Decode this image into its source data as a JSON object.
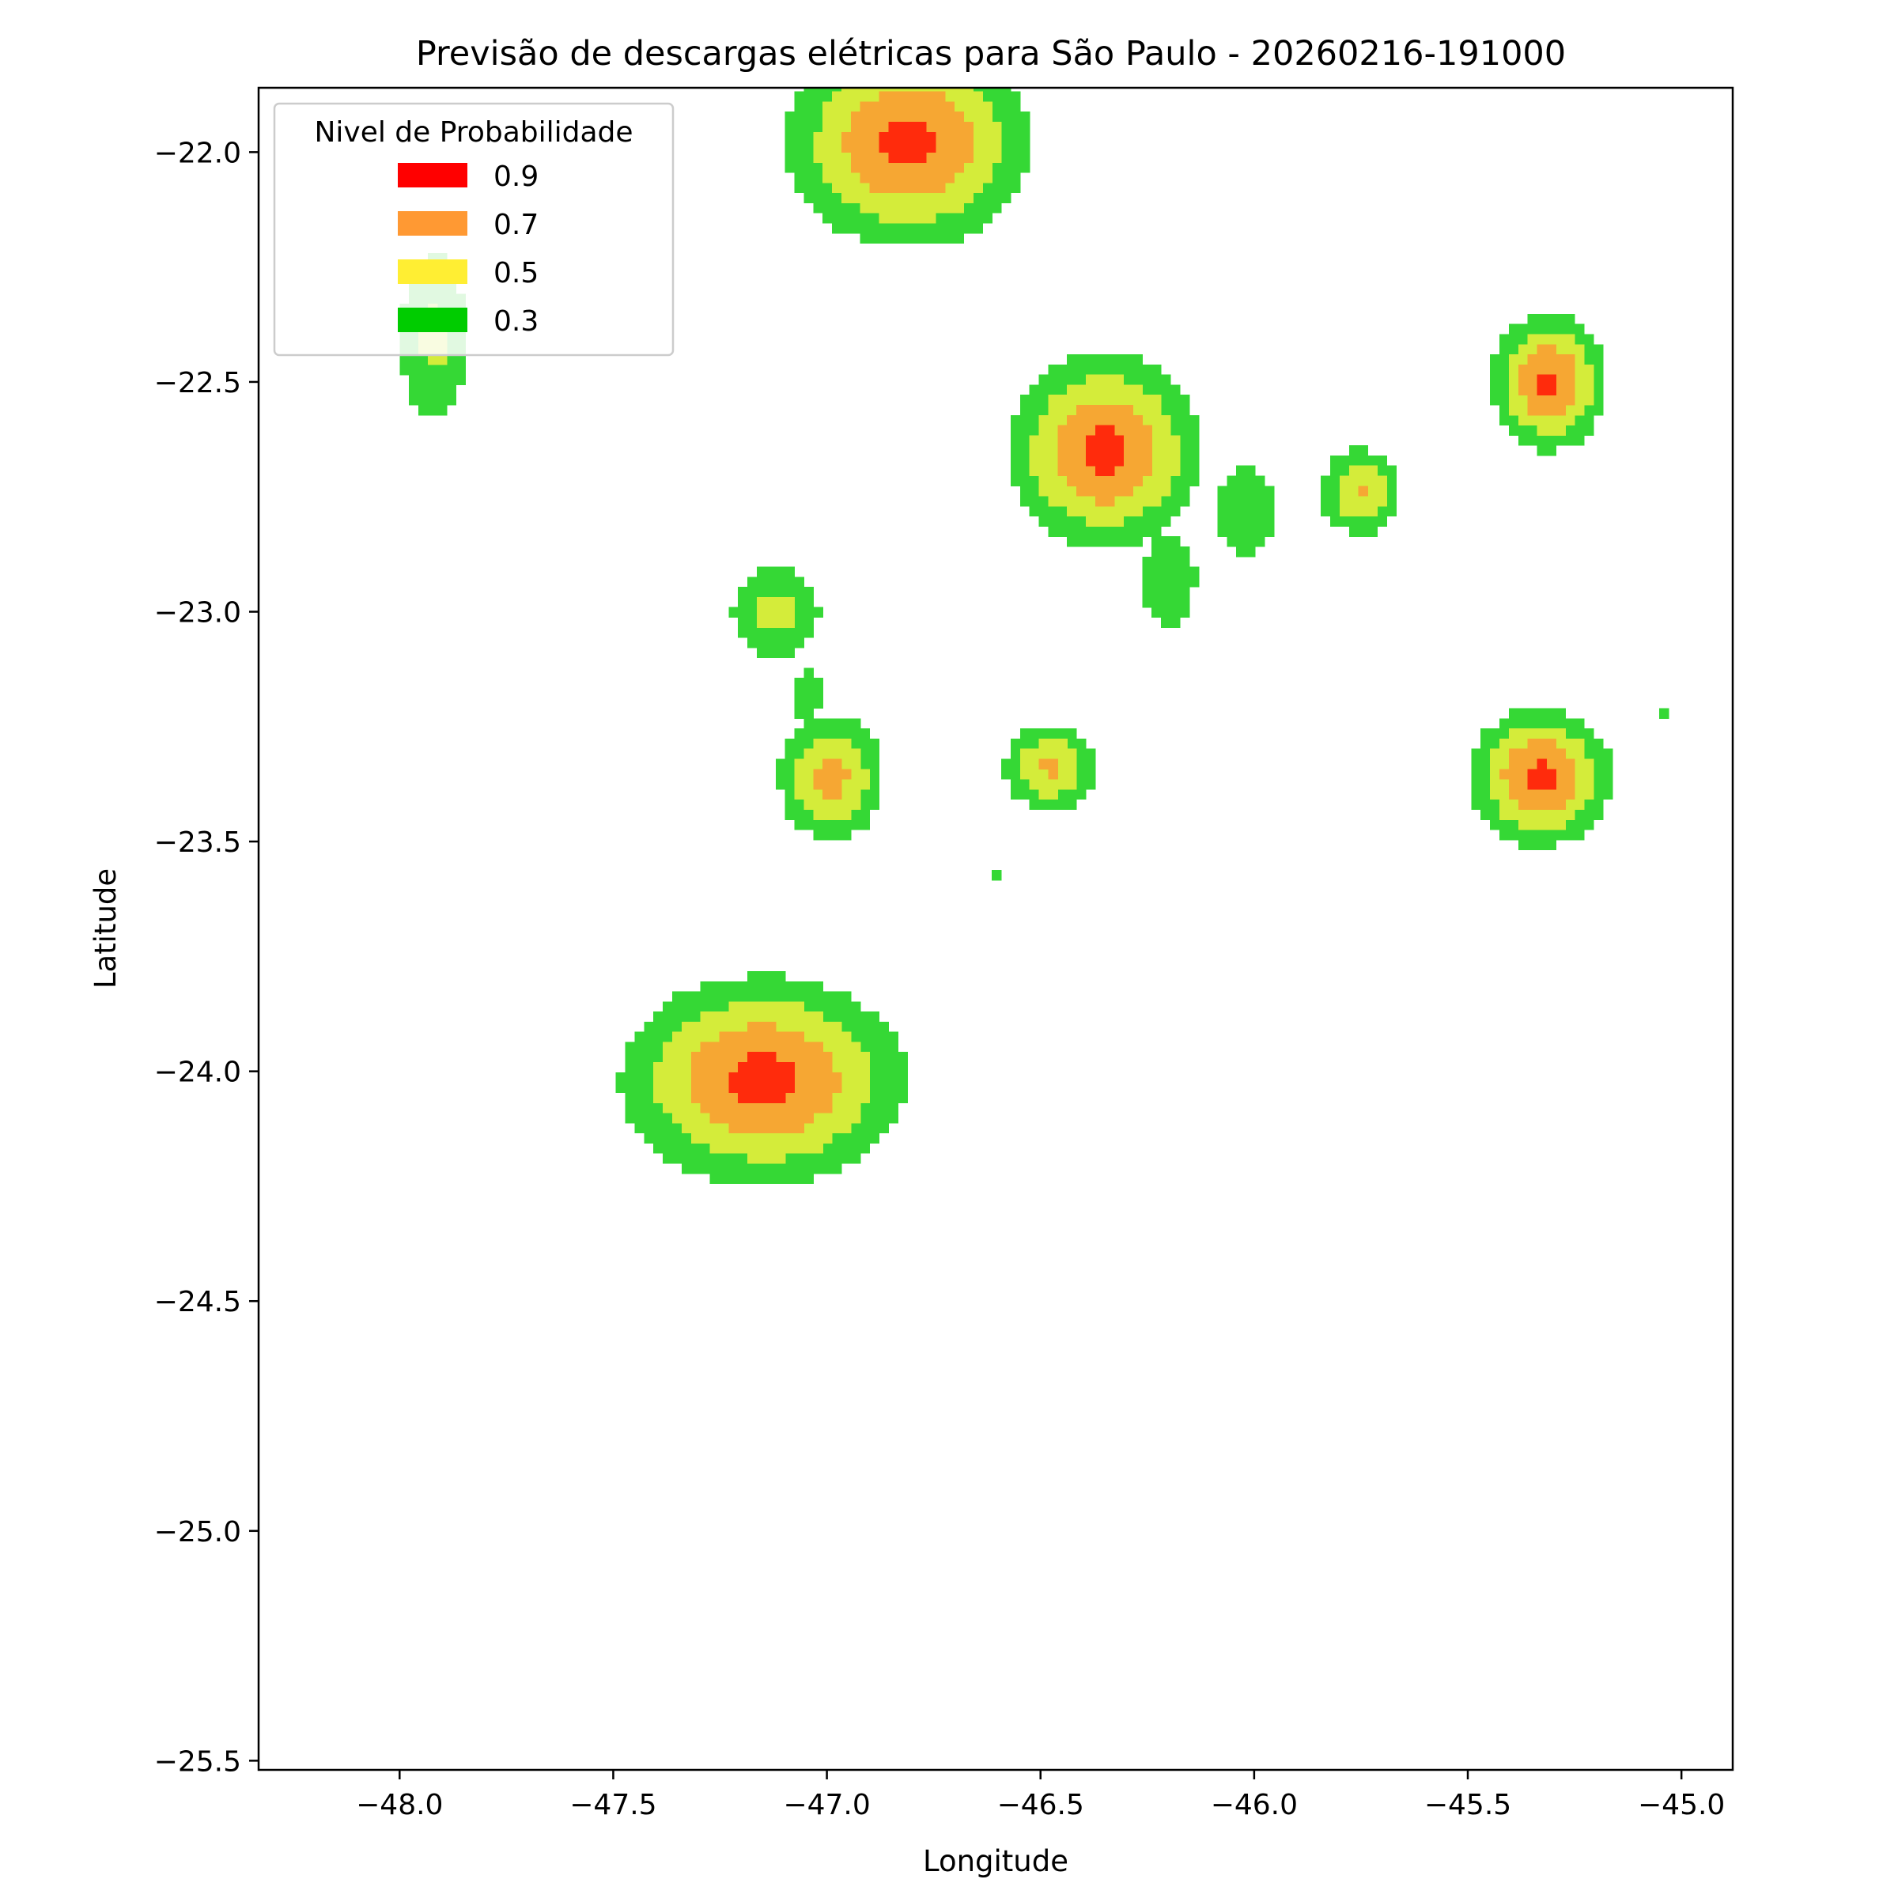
{
  "chart_data": {
    "type": "contour",
    "title": "Previsão de descargas elétricas para São Paulo - 20260216-191000",
    "xlabel": "Longitude",
    "ylabel": "Latitude",
    "xlim": [
      -48.33,
      -44.88
    ],
    "ylim": [
      -25.52,
      -21.86
    ],
    "xticks": [
      -48.0,
      -47.5,
      -47.0,
      -46.5,
      -46.0,
      -45.5,
      -45.0
    ],
    "xtick_labels": [
      "−48.0",
      "−47.5",
      "−47.0",
      "−46.5",
      "−46.0",
      "−45.5",
      "−45.0"
    ],
    "yticks": [
      -22.0,
      -22.5,
      -23.0,
      -23.5,
      -24.0,
      -24.5,
      -25.0,
      -25.5
    ],
    "ytick_labels": [
      "−22.0",
      "−22.5",
      "−23.0",
      "−23.5",
      "−24.0",
      "−24.5",
      "−25.0",
      "−25.5"
    ],
    "grid": false,
    "legend": {
      "title": "Nivel de Probabilidade",
      "placement": "top-left",
      "entries": [
        {
          "label": "0.9",
          "color": "#ff0000"
        },
        {
          "label": "0.7",
          "color": "#ff9933"
        },
        {
          "label": "0.5",
          "color": "#ffee33"
        },
        {
          "label": "0.3",
          "color": "#00cc00"
        }
      ]
    },
    "fill_colors": {
      "0.3": "#35d835",
      "0.5": "#d4ec3a",
      "0.7": "#f6a733",
      "0.9": "#ff2b0c"
    },
    "cells": [
      {
        "name": "north-central-cell",
        "lon": -46.81,
        "lat": -21.98,
        "peak": 0.95,
        "sigma_lon": 0.19,
        "sigma_lat": 0.15
      },
      {
        "name": "northwest-band-cell",
        "lon": -47.92,
        "lat": -22.4,
        "peak": 0.55,
        "sigma_lon": 0.07,
        "sigma_lat": 0.16
      },
      {
        "name": "central-north-cell",
        "lon": -46.35,
        "lat": -22.65,
        "peak": 0.96,
        "sigma_lon": 0.15,
        "sigma_lat": 0.14
      },
      {
        "name": "east-small-cell",
        "lon": -45.75,
        "lat": -22.74,
        "peak": 0.72,
        "sigma_lon": 0.07,
        "sigma_lat": 0.07
      },
      {
        "name": "northeast-cell",
        "lon": -45.31,
        "lat": -22.5,
        "peak": 0.93,
        "sigma_lon": 0.09,
        "sigma_lat": 0.1
      },
      {
        "name": "west-upper-cell",
        "lon": -47.12,
        "lat": -23.0,
        "peak": 0.56,
        "sigma_lon": 0.09,
        "sigma_lat": 0.09
      },
      {
        "name": "west-lower-cell",
        "lon": -46.99,
        "lat": -23.36,
        "peak": 0.76,
        "sigma_lon": 0.09,
        "sigma_lat": 0.1
      },
      {
        "name": "central-small-cell",
        "lon": -46.48,
        "lat": -23.34,
        "peak": 0.72,
        "sigma_lon": 0.08,
        "sigma_lat": 0.07
      },
      {
        "name": "southeast-cell",
        "lon": -45.33,
        "lat": -23.36,
        "peak": 0.95,
        "sigma_lon": 0.11,
        "sigma_lat": 0.1
      },
      {
        "name": "southwest-large-cell",
        "lon": -47.15,
        "lat": -24.02,
        "peak": 0.96,
        "sigma_lon": 0.22,
        "sigma_lat": 0.15
      },
      {
        "name": "bridge-central-east",
        "lon": -46.02,
        "lat": -22.78,
        "peak": 0.42,
        "sigma_lon": 0.09,
        "sigma_lat": 0.11
      },
      {
        "name": "central-tail",
        "lon": -46.2,
        "lat": -22.93,
        "peak": 0.5,
        "sigma_lon": 0.06,
        "sigma_lat": 0.1
      },
      {
        "name": "west-bridge",
        "lon": -47.05,
        "lat": -23.18,
        "peak": 0.36,
        "sigma_lon": 0.06,
        "sigma_lat": 0.08
      },
      {
        "name": "isolated-dot",
        "lon": -46.6,
        "lat": -23.57,
        "peak": 0.33,
        "sigma_lon": 0.02,
        "sigma_lat": 0.02
      },
      {
        "name": "far-east-fleck",
        "lon": -45.04,
        "lat": -23.22,
        "peak": 0.34,
        "sigma_lon": 0.03,
        "sigma_lat": 0.02
      }
    ]
  }
}
